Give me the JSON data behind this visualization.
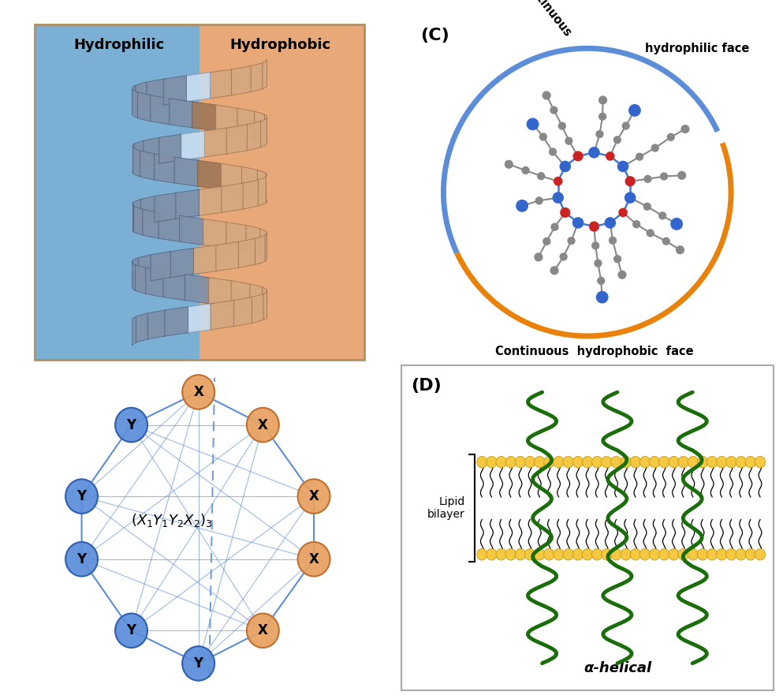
{
  "panel_A": {
    "title_left": "Hydrophilic",
    "title_right": "Hydrophobic",
    "bg_left": "#7bafd4",
    "bg_right": "#e8a878",
    "helix_color_left": "#aac8e8",
    "helix_color_right": "#c09070",
    "border_color": "#b09060"
  },
  "panel_B": {
    "Y_color": "#5b8dd9",
    "X_color": "#e8a060",
    "line_color": "#5b8dd9"
  },
  "panel_C": {
    "label": "(C)",
    "arc_blue_color": "#5b8dd9",
    "arc_orange_color": "#e8820a"
  },
  "panel_D": {
    "label": "(D)",
    "lipid_color": "#f5c842",
    "helix_color": "#1a6e0a",
    "bilayer_text": "Lipid\nbilayer",
    "alpha_text": "α-helical"
  },
  "background_color": "#ffffff"
}
